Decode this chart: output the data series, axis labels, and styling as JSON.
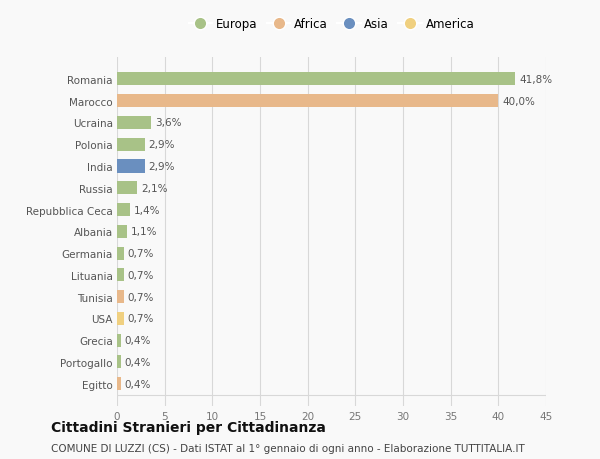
{
  "countries": [
    "Romania",
    "Marocco",
    "Ucraina",
    "Polonia",
    "India",
    "Russia",
    "Repubblica Ceca",
    "Albania",
    "Germania",
    "Lituania",
    "Tunisia",
    "USA",
    "Grecia",
    "Portogallo",
    "Egitto"
  ],
  "values": [
    41.8,
    40.0,
    3.6,
    2.9,
    2.9,
    2.1,
    1.4,
    1.1,
    0.7,
    0.7,
    0.7,
    0.7,
    0.4,
    0.4,
    0.4
  ],
  "labels": [
    "41,8%",
    "40,0%",
    "3,6%",
    "2,9%",
    "2,9%",
    "2,1%",
    "1,4%",
    "1,1%",
    "0,7%",
    "0,7%",
    "0,7%",
    "0,7%",
    "0,4%",
    "0,4%",
    "0,4%"
  ],
  "continents": [
    "Europa",
    "Africa",
    "Europa",
    "Europa",
    "Asia",
    "Europa",
    "Europa",
    "Europa",
    "Europa",
    "Europa",
    "Africa",
    "America",
    "Europa",
    "Europa",
    "Africa"
  ],
  "continent_colors": {
    "Europa": "#a8c287",
    "Africa": "#e8b88a",
    "Asia": "#6a8fbf",
    "America": "#f0d080"
  },
  "legend_order": [
    "Europa",
    "Africa",
    "Asia",
    "America"
  ],
  "xlim": [
    0,
    45
  ],
  "xticks": [
    0,
    5,
    10,
    15,
    20,
    25,
    30,
    35,
    40,
    45
  ],
  "title": "Cittadini Stranieri per Cittadinanza",
  "subtitle": "COMUNE DI LUZZI (CS) - Dati ISTAT al 1° gennaio di ogni anno - Elaborazione TUTTITALIA.IT",
  "bg_color": "#f9f9f9",
  "grid_color": "#d8d8d8",
  "bar_height": 0.6,
  "title_fontsize": 10,
  "subtitle_fontsize": 7.5,
  "label_fontsize": 7.5,
  "tick_fontsize": 7.5,
  "legend_fontsize": 8.5
}
